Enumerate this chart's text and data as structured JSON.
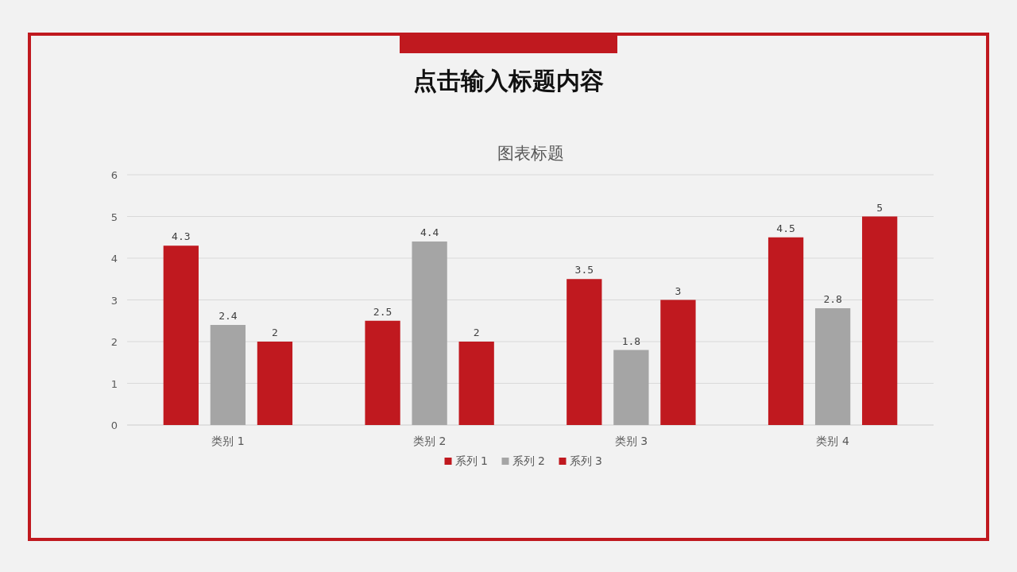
{
  "chart_data": {
    "type": "bar",
    "title": "点击输入标题内容",
    "subtitle": "图表标题",
    "categories": [
      "类别 1",
      "类别 2",
      "类别 3",
      "类别 4"
    ],
    "series": [
      {
        "name": "系列 1",
        "color": "#c0191f",
        "values": [
          4.3,
          2.5,
          3.5,
          4.5
        ]
      },
      {
        "name": "系列 2",
        "color": "#a5a5a5",
        "values": [
          2.4,
          4.4,
          1.8,
          2.8
        ]
      },
      {
        "name": "系列 3",
        "color": "#c0191f",
        "values": [
          2,
          2,
          3,
          5
        ]
      }
    ],
    "ylim": [
      0,
      6
    ],
    "yticks": [
      0,
      1,
      2,
      3,
      4,
      5,
      6
    ],
    "grid": "y",
    "legend": "bottom",
    "data_labels": true
  }
}
